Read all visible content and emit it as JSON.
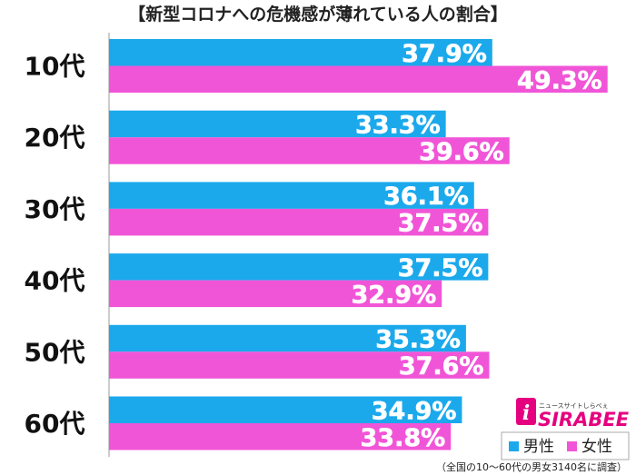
{
  "chart_data": {
    "type": "bar",
    "title": "【新型コロナへの危機感が薄れている人の割合】",
    "categories": [
      "10代",
      "20代",
      "30代",
      "40代",
      "50代",
      "60代"
    ],
    "series": [
      {
        "name": "男性",
        "color": "#1ba9ec",
        "values": [
          37.9,
          33.3,
          36.1,
          37.5,
          35.3,
          34.9
        ]
      },
      {
        "name": "女性",
        "color": "#f155d7",
        "values": [
          49.3,
          39.6,
          37.5,
          32.9,
          37.6,
          33.8
        ]
      }
    ],
    "value_suffix": "%",
    "orientation": "horizontal",
    "xlim": [
      0,
      52
    ],
    "grid": false,
    "legend_position": "bottom-right"
  },
  "footnote": "（全国の10～60代の男女3140名に調査）",
  "logo": {
    "tagline": "ニュースサイトしらべぇ",
    "brand": "SIRABEE",
    "color": "#e5007f"
  }
}
